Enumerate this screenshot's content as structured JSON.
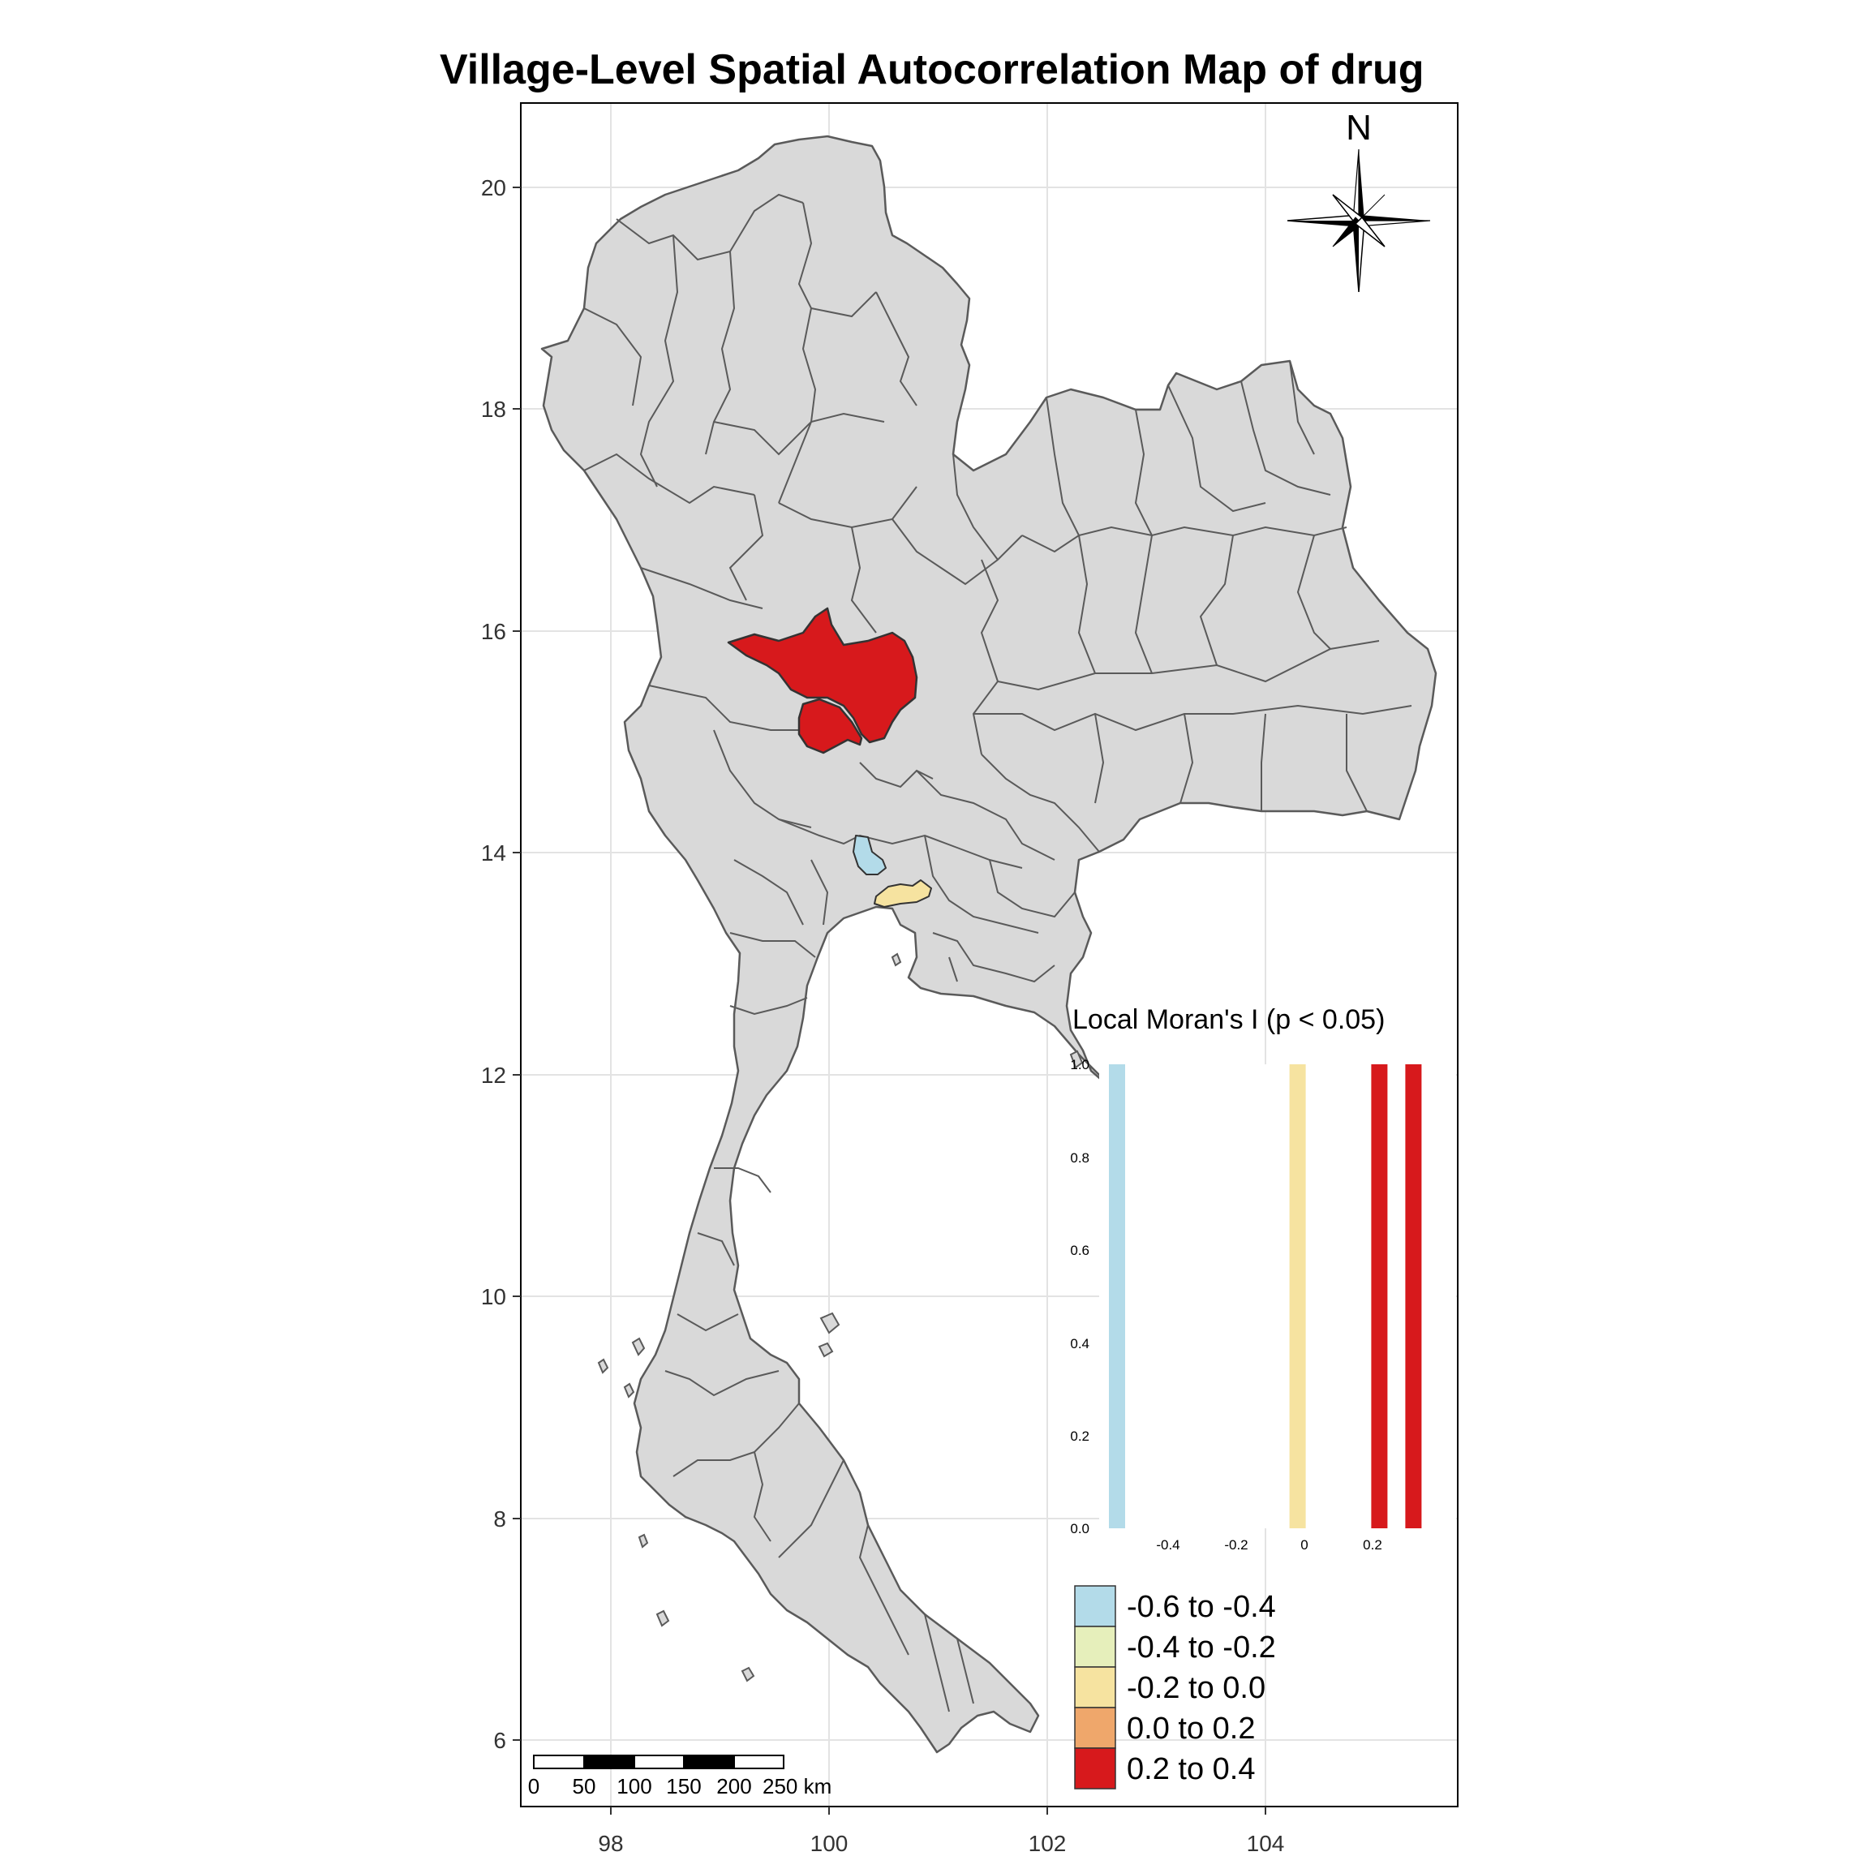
{
  "title": "Village-Level Spatial Autocorrelation Map of drug",
  "axes": {
    "x_ticks": [
      "98",
      "100",
      "102",
      "104"
    ],
    "y_ticks": [
      "20",
      "18",
      "16",
      "14",
      "12",
      "10",
      "8",
      "6"
    ]
  },
  "compass": {
    "label": "N"
  },
  "scale_bar": {
    "labels": [
      "0",
      "50",
      "100",
      "150",
      "200",
      "250 km"
    ]
  },
  "histogram": {
    "title": "Local Moran's I (p < 0.05)",
    "y_ticks": [
      "0.0",
      "0.2",
      "0.4",
      "0.6",
      "0.8",
      "1.0"
    ],
    "x_ticks": [
      "-0.4",
      "-0.2",
      "0",
      "0.2"
    ],
    "bars": [
      {
        "x": -0.55,
        "value": 1.0,
        "color": "#b3dbe9"
      },
      {
        "x": -0.02,
        "value": 1.0,
        "color": "#f6e3a0"
      },
      {
        "x": 0.22,
        "value": 1.0,
        "color": "#d7191c"
      },
      {
        "x": 0.32,
        "value": 1.0,
        "color": "#d7191c"
      }
    ]
  },
  "legend": {
    "items": [
      {
        "label": "-0.6 to -0.4",
        "color": "#b3dbe9"
      },
      {
        "label": "-0.4 to -0.2",
        "color": "#e6efbb"
      },
      {
        "label": "-0.2 to 0.0",
        "color": "#f6e3a0"
      },
      {
        "label": "0.0 to 0.2",
        "color": "#efa76b"
      },
      {
        "label": "0.2 to 0.4",
        "color": "#d7191c"
      }
    ]
  },
  "colors": {
    "land": "#d9d9d9",
    "border": "#595959",
    "grid": "#e0e0e0",
    "hotspot": "#d7191c",
    "coldspot": "#b3dbe9",
    "mild": "#f6e3a0"
  }
}
